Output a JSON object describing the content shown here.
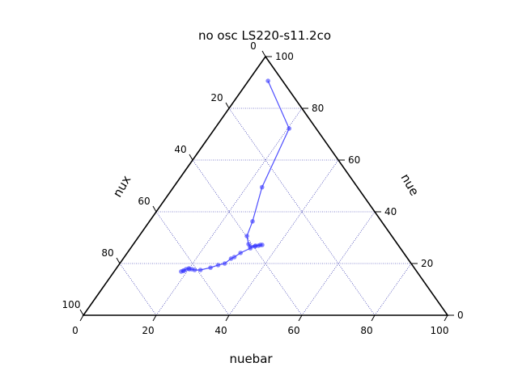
{
  "chart_data": {
    "type": "ternary",
    "title": "no osc LS220-s11.2co",
    "axes": {
      "bottom": {
        "label": "nuebar",
        "range": [
          0,
          100
        ]
      },
      "right": {
        "label": "nue",
        "range": [
          0,
          100
        ]
      },
      "left": {
        "label": "nux",
        "range": [
          0,
          100
        ]
      }
    },
    "ticks": [
      0,
      20,
      40,
      60,
      80,
      100
    ],
    "tick_labels": {
      "bottom": [
        "0",
        "20",
        "40",
        "60",
        "80",
        "100"
      ],
      "right": [
        "0",
        "20",
        "40",
        "60",
        "80",
        "100"
      ],
      "left": [
        "0",
        "20",
        "40",
        "60",
        "80",
        "100"
      ]
    },
    "grid": true,
    "grid_style": "dotted",
    "series": [
      {
        "color": "#3b3bff",
        "marker": "circle",
        "points": [
          {
            "nuebar": 5.4,
            "nue": 90.6,
            "nux": 4.0
          },
          {
            "nuebar": 20.4,
            "nue": 72.2,
            "nux": 7.4
          },
          {
            "nuebar": 24.3,
            "nue": 49.5,
            "nux": 26.2
          },
          {
            "nuebar": 28.3,
            "nue": 36.3,
            "nux": 35.4
          },
          {
            "nuebar": 29.6,
            "nue": 30.6,
            "nux": 39.8
          },
          {
            "nuebar": 31.6,
            "nue": 27.5,
            "nux": 40.9
          },
          {
            "nuebar": 32.5,
            "nue": 26.6,
            "nux": 40.9
          },
          {
            "nuebar": 33.8,
            "nue": 26.9,
            "nux": 39.3
          },
          {
            "nuebar": 35.0,
            "nue": 27.2,
            "nux": 37.8
          },
          {
            "nuebar": 35.5,
            "nue": 27.2,
            "nux": 37.3
          },
          {
            "nuebar": 34.6,
            "nue": 26.9,
            "nux": 38.5
          },
          {
            "nuebar": 33.8,
            "nue": 26.6,
            "nux": 39.6
          },
          {
            "nuebar": 32.9,
            "nue": 25.9,
            "nux": 41.2
          },
          {
            "nuebar": 31.1,
            "nue": 24.1,
            "nux": 44.8
          },
          {
            "nuebar": 30.2,
            "nue": 22.5,
            "nux": 47.3
          },
          {
            "nuebar": 29.6,
            "nue": 21.9,
            "nux": 48.5
          },
          {
            "nuebar": 28.8,
            "nue": 20.0,
            "nux": 51.2
          },
          {
            "nuebar": 27.3,
            "nue": 19.4,
            "nux": 53.3
          },
          {
            "nuebar": 25.7,
            "nue": 18.4,
            "nux": 55.9
          },
          {
            "nuebar": 23.4,
            "nue": 17.5,
            "nux": 59.1
          },
          {
            "nuebar": 21.8,
            "nue": 17.5,
            "nux": 60.7
          },
          {
            "nuebar": 20.9,
            "nue": 17.8,
            "nux": 61.3
          },
          {
            "nuebar": 20.2,
            "nue": 17.8,
            "nux": 62.0
          },
          {
            "nuebar": 19.9,
            "nue": 18.1,
            "nux": 62.0
          },
          {
            "nuebar": 19.3,
            "nue": 17.8,
            "nux": 62.9
          },
          {
            "nuebar": 18.8,
            "nue": 17.2,
            "nux": 64.0
          },
          {
            "nuebar": 18.4,
            "nue": 16.9,
            "nux": 64.7
          },
          {
            "nuebar": 19.0,
            "nue": 17.2,
            "nux": 63.8
          }
        ]
      }
    ]
  }
}
